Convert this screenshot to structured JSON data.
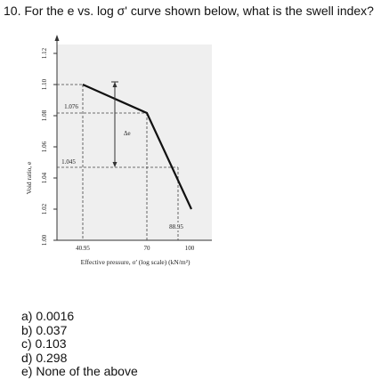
{
  "question": "10. For the e vs. log σ' curve shown below, what is the swell index?",
  "figure": {
    "y_axis_label": "Void ratio, e",
    "y_ticks": [
      "1.12",
      "1.10",
      "1.08",
      "1.06",
      "1.04",
      "1.02",
      "1.00"
    ],
    "x_axis_label": "Effective pressure, σ' (log scale) (kN/m²)",
    "x_ticks": [
      "40.95",
      "70",
      "100"
    ],
    "annotations": {
      "e_top": "1.076",
      "e_bottom": "1.045",
      "delta_e": "Δe",
      "sigma_right": "88.95"
    }
  },
  "options": [
    "a) 0.0016",
    "b) 0.037",
    "c) 0.103",
    "d) 0.298",
    "e) None of the above"
  ]
}
